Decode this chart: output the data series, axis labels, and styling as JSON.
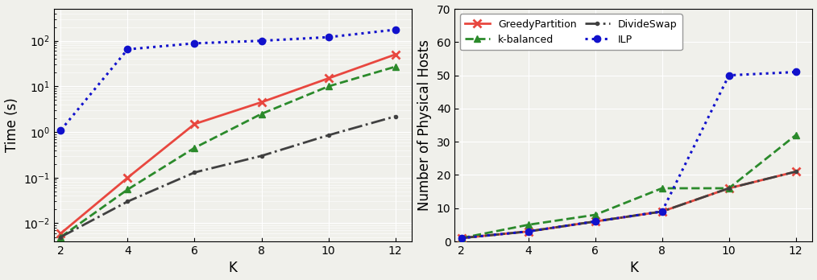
{
  "K": [
    2,
    4,
    6,
    8,
    10,
    12
  ],
  "left_ylabel": "Time (s)",
  "left_xlabel": "K",
  "right_ylabel": "Number of Physical Hosts",
  "right_xlabel": "K",
  "greedy_time": [
    0.006,
    0.1,
    1.5,
    4.5,
    15.0,
    50.0
  ],
  "kbalanced_time": [
    0.005,
    0.055,
    0.45,
    2.5,
    10.0,
    27.0
  ],
  "divideswap_time": [
    0.005,
    0.03,
    0.13,
    0.3,
    0.85,
    2.2
  ],
  "ilp_time": [
    1.1,
    65.0,
    88.0,
    100.0,
    120.0,
    175.0
  ],
  "greedy_hosts": [
    1,
    3,
    6,
    9,
    16,
    21
  ],
  "kbalanced_hosts": [
    1,
    5,
    8,
    16,
    16,
    32
  ],
  "divideswap_hosts": [
    1,
    3,
    6,
    9,
    16,
    21
  ],
  "ilp_hosts": [
    1,
    3,
    6,
    9,
    50,
    51
  ],
  "colors": {
    "greedy": "#e8473f",
    "kbalanced": "#2b8a2b",
    "divideswap": "#404040",
    "ilp": "#1111cc"
  },
  "bg_color": "#f5f5f0",
  "legend_labels": {
    "greedy": "GreedyPartition",
    "kbalanced": "k-balanced",
    "divideswap": "DivideSwap",
    "ilp": "ILP"
  }
}
